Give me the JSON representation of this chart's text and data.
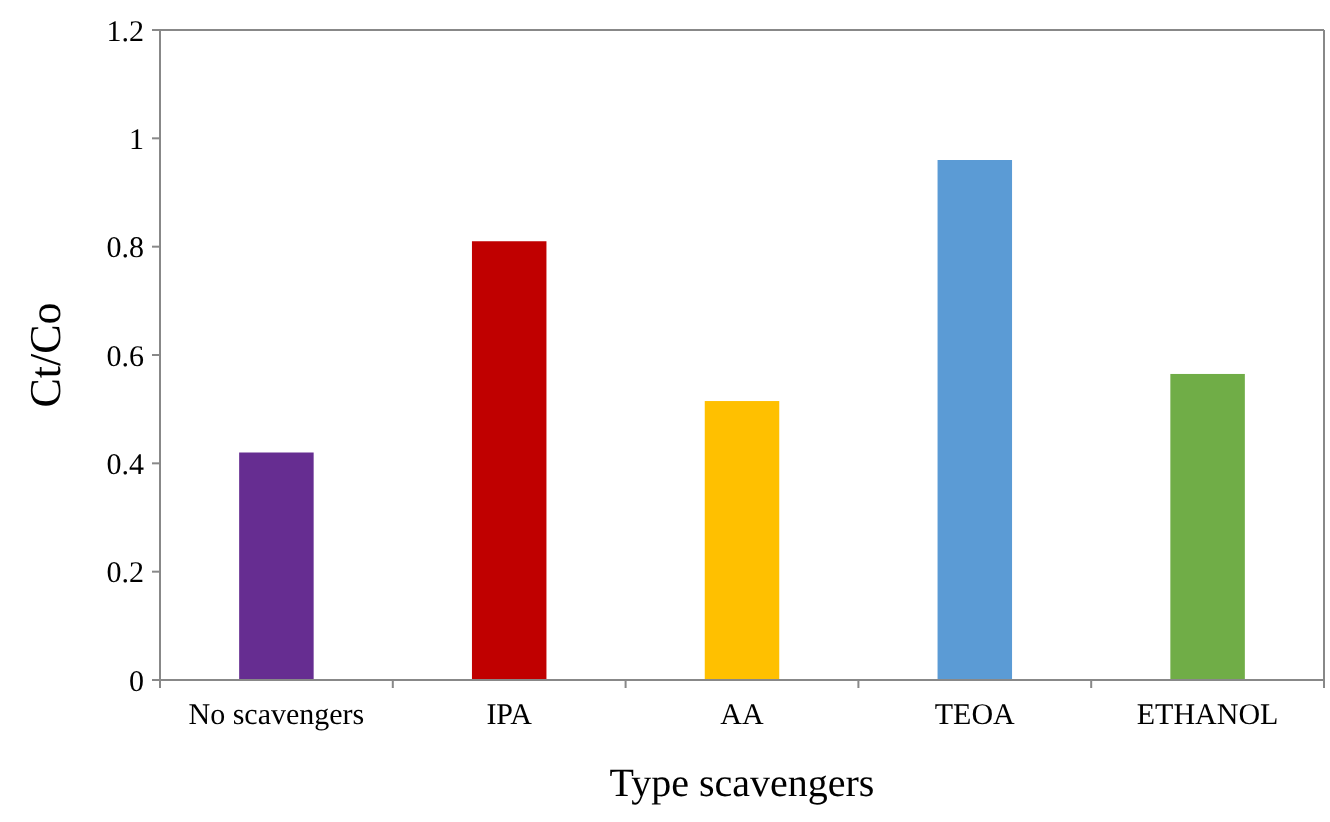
{
  "chart_data": {
    "type": "bar",
    "xlabel": "Type scavengers",
    "ylabel": "Ct/Co",
    "categories": [
      "No scavengers",
      "IPA",
      "AA",
      "TEOA",
      "ETHANOL"
    ],
    "values": [
      0.42,
      0.81,
      0.515,
      0.96,
      0.565
    ],
    "colors": [
      "#662d91",
      "#c00000",
      "#ffc000",
      "#5b9bd5",
      "#70ad47"
    ],
    "ylim": [
      0,
      1.2
    ],
    "yticks": [
      0,
      0.2,
      0.4,
      0.6,
      0.8,
      1,
      1.2
    ],
    "grid": false
  }
}
